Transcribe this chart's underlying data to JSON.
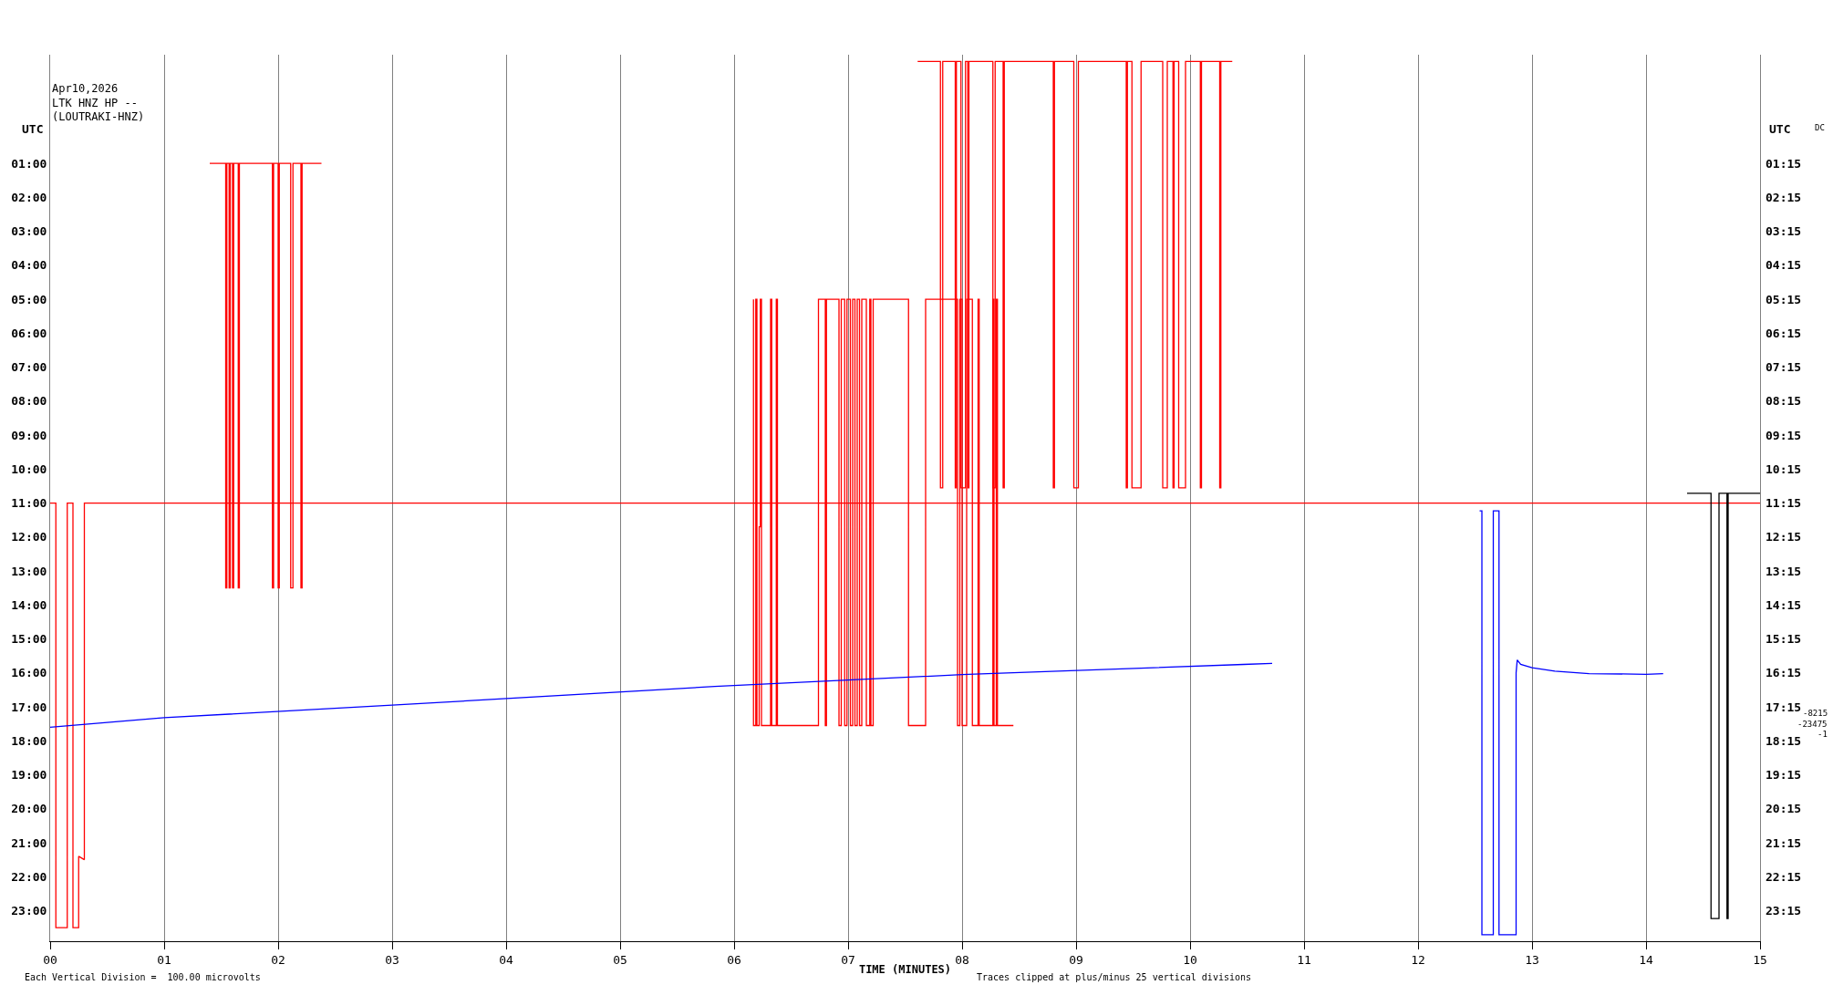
{
  "chart_data": {
    "type": "line",
    "title": "Apr10,2026",
    "subtitle": "LTK HNZ HP --\n(LOUTRAKI-HNZ)",
    "xlabel": "TIME (MINUTES)",
    "ylabel": "UTC",
    "y2label": "UTC",
    "annotations": [
      "DC",
      "-8215",
      "-23475",
      "-1",
      "Each Vertical Division =  100.00 microvolts",
      "Traces clipped at plus/minus 25 vertical divisions"
    ],
    "xlim": [
      0,
      15
    ],
    "xticks": [
      {
        "value": 0,
        "label": "00"
      },
      {
        "value": 1,
        "label": "01"
      },
      {
        "value": 2,
        "label": "02"
      },
      {
        "value": 3,
        "label": "03"
      },
      {
        "value": 4,
        "label": "04"
      },
      {
        "value": 5,
        "label": "05"
      },
      {
        "value": 6,
        "label": "06"
      },
      {
        "value": 7,
        "label": "07"
      },
      {
        "value": 8,
        "label": "08"
      },
      {
        "value": 9,
        "label": "09"
      },
      10,
      11,
      12,
      13,
      14,
      15
    ],
    "ylim": [
      23.9,
      -2.2
    ],
    "yticks": [
      {
        "value": 1,
        "label": "01:00"
      },
      {
        "value": 2,
        "label": "02:00"
      },
      {
        "value": 3,
        "label": "03:00"
      },
      {
        "value": 4,
        "label": "04:00"
      },
      {
        "value": 5,
        "label": "05:00"
      },
      {
        "value": 6,
        "label": "06:00"
      },
      {
        "value": 7,
        "label": "07:00"
      },
      {
        "value": 8,
        "label": "08:00"
      },
      {
        "value": 9,
        "label": "09:00"
      },
      {
        "value": 10,
        "label": "10:00"
      },
      {
        "value": 11,
        "label": "11:00"
      },
      {
        "value": 12,
        "label": "12:00"
      },
      {
        "value": 13,
        "label": "13:00"
      },
      {
        "value": 14,
        "label": "14:00"
      },
      {
        "value": 15,
        "label": "15:00"
      },
      {
        "value": 16,
        "label": "16:00"
      },
      {
        "value": 17,
        "label": "17:00"
      },
      {
        "value": 18,
        "label": "18:00"
      },
      {
        "value": 19,
        "label": "19:00"
      },
      {
        "value": 20,
        "label": "20:00"
      },
      {
        "value": 21,
        "label": "21:00"
      },
      {
        "value": 22,
        "label": "22:00"
      },
      {
        "value": 23,
        "label": "23:00"
      }
    ],
    "y2lim": [
      24.15,
      -1.95
    ],
    "y2ticks": [
      {
        "value": 1.25,
        "label": "01:15"
      },
      {
        "value": 2.25,
        "label": "02:15"
      },
      {
        "value": 3.25,
        "label": "03:15"
      },
      {
        "value": 4.25,
        "label": "04:15"
      },
      {
        "value": 5.25,
        "label": "05:15"
      },
      {
        "value": 6.25,
        "label": "06:15"
      },
      {
        "value": 7.25,
        "label": "07:15"
      },
      {
        "value": 8.25,
        "label": "08:15"
      },
      {
        "value": 9.25,
        "label": "09:15"
      },
      {
        "value": 10.25,
        "label": "10:15"
      },
      {
        "value": 11.25,
        "label": "11:15"
      },
      {
        "value": 12.25,
        "label": "12:15"
      },
      {
        "value": 13.25,
        "label": "13:15"
      },
      {
        "value": 14.25,
        "label": "14:15"
      },
      {
        "value": 15.25,
        "label": "15:15"
      },
      {
        "value": 16.25,
        "label": "16:15"
      },
      {
        "value": 17.25,
        "label": "17:15"
      },
      {
        "value": 18.25,
        "label": "18:15"
      },
      {
        "value": 19.25,
        "label": "19:15"
      },
      {
        "value": 20.25,
        "label": "20:15"
      },
      {
        "value": 21.25,
        "label": "21:15"
      },
      {
        "value": 22.25,
        "label": "22:15"
      },
      {
        "value": 23.25,
        "label": "23:15"
      }
    ],
    "grid": "x",
    "line_style": "solid",
    "series": [
      {
        "color": "#ff0000",
        "x": [
          0,
          0.05,
          0.05,
          0.15,
          0.15,
          0.2,
          0.2,
          0.25,
          0.25,
          0.3,
          0.3,
          0.3,
          15
        ],
        "values": [
          11,
          11,
          23.5,
          23.5,
          11,
          11,
          23.5,
          23.5,
          21.4,
          21.5,
          16,
          11,
          11
        ]
      },
      {
        "color": "#ff0000",
        "x": [
          1.4,
          1.54,
          1.54,
          1.55,
          1.55,
          1.57,
          1.57,
          1.58,
          1.58,
          1.6,
          1.6,
          1.61,
          1.61,
          1.65,
          1.65,
          1.66,
          1.66,
          1.95,
          1.95,
          1.96,
          1.96,
          2.0,
          2.0,
          2.01,
          2.01,
          2.11,
          2.11,
          2.13,
          2.13,
          2.2,
          2.2,
          2.21,
          2.21,
          2.38
        ],
        "values": [
          1,
          1,
          13.5,
          13.5,
          1,
          1,
          13.5,
          13.5,
          1,
          1,
          13.5,
          13.5,
          1,
          1,
          13.5,
          13.5,
          1,
          1,
          13.5,
          13.5,
          1,
          1,
          13.5,
          13.5,
          1,
          1,
          13.5,
          13.5,
          1,
          1,
          13.5,
          13.5,
          1,
          1
        ]
      },
      {
        "color": "#ff0000",
        "x": [
          6.17,
          6.17,
          6.19,
          6.19,
          6.2,
          6.2,
          6.22,
          6.22,
          6.23,
          6.23,
          6.24,
          6.24,
          6.32,
          6.32,
          6.33,
          6.33,
          6.37,
          6.37,
          6.38,
          6.38,
          6.74,
          6.74,
          6.8,
          6.8,
          6.81,
          6.81,
          6.92,
          6.92,
          6.94,
          6.94,
          6.97,
          6.97,
          6.99,
          6.99,
          7.02,
          7.02,
          7.04,
          7.04,
          7.06,
          7.06,
          7.08,
          7.08,
          7.1,
          7.1,
          7.12,
          7.12,
          7.16,
          7.16,
          7.19,
          7.19,
          7.2,
          7.2,
          7.22,
          7.22,
          7.53,
          7.53,
          7.68,
          7.68,
          7.96,
          7.96,
          7.98,
          7.98,
          8.0,
          8.0,
          8.04,
          8.04,
          8.09,
          8.09,
          8.14,
          8.14,
          8.15,
          8.15,
          8.27,
          8.27,
          8.28,
          8.28,
          8.3,
          8.3,
          8.31,
          8.31,
          8.45
        ],
        "values": [
          5,
          17.55,
          17.55,
          5,
          5,
          17.55,
          17.55,
          11.7,
          11.7,
          5,
          5,
          17.55,
          17.55,
          5,
          5,
          17.55,
          17.55,
          5,
          5,
          17.55,
          17.55,
          5,
          5,
          17.55,
          17.55,
          5,
          5,
          17.55,
          17.55,
          5,
          5,
          17.55,
          17.55,
          5,
          5,
          17.55,
          17.55,
          5,
          5,
          17.55,
          17.55,
          5,
          5,
          17.55,
          17.55,
          5,
          5,
          17.55,
          17.55,
          5,
          5,
          17.55,
          17.55,
          5,
          5,
          17.55,
          17.55,
          5,
          5,
          17.55,
          17.55,
          5,
          5,
          17.55,
          17.55,
          5,
          5,
          17.55,
          17.55,
          5,
          5,
          17.55,
          17.55,
          5,
          5,
          17.55,
          17.55,
          5,
          5,
          17.55,
          17.55
        ]
      },
      {
        "color": "#ff0000",
        "x": [
          7.61,
          7.81,
          7.81,
          7.83,
          7.83,
          7.94,
          7.94,
          7.95,
          7.95,
          7.99,
          7.99,
          8.03,
          8.03,
          8.05,
          8.05,
          8.06,
          8.06,
          8.27,
          8.27,
          8.29,
          8.29,
          8.36,
          8.36,
          8.37,
          8.37,
          8.8,
          8.8,
          8.81,
          8.81,
          8.98,
          8.98,
          9.02,
          9.02,
          9.44,
          9.44,
          9.45,
          9.45,
          9.49,
          9.49,
          9.57,
          9.57,
          9.76,
          9.76,
          9.8,
          9.8,
          9.85,
          9.85,
          9.86,
          9.86,
          9.9,
          9.9,
          9.96,
          9.96,
          10.09,
          10.09,
          10.1,
          10.1,
          10.26,
          10.26,
          10.27,
          10.27,
          10.37
        ],
        "values": [
          -2,
          -2,
          10.55,
          10.55,
          -2,
          -2,
          10.55,
          10.55,
          -2,
          -2,
          10.55,
          10.55,
          -2,
          -2,
          10.55,
          10.55,
          -2,
          -2,
          10.55,
          10.55,
          -2,
          -2,
          10.55,
          10.55,
          -2,
          -2,
          10.55,
          10.55,
          -2,
          -2,
          10.55,
          10.55,
          -2,
          -2,
          10.55,
          10.55,
          -2,
          -2,
          10.55,
          10.55,
          -2,
          -2,
          10.55,
          10.55,
          -2,
          -2,
          10.55,
          10.55,
          -2,
          -2,
          10.55,
          10.55,
          -2,
          -2,
          10.55,
          10.55,
          -2,
          -2,
          10.55,
          10.55,
          -2,
          -2
        ]
      },
      {
        "color": "#0000ff",
        "x": [
          0,
          1,
          3,
          5.83,
          8,
          10.47,
          10.72
        ],
        "values": [
          17.6,
          17.32,
          16.95,
          16.4,
          16.05,
          15.75,
          15.72
        ]
      },
      {
        "color": "#0000ff",
        "x": [
          12.54,
          12.56,
          12.56,
          12.66,
          12.66,
          12.71,
          12.71,
          12.71,
          12.86,
          12.86,
          12.87,
          12.9,
          13.0,
          13.2,
          13.5,
          14.0,
          14.15
        ],
        "values": [
          11.23,
          11.23,
          23.71,
          23.71,
          11.23,
          11.23,
          17.47,
          23.71,
          23.71,
          16.0,
          15.62,
          15.75,
          15.85,
          15.95,
          16.02,
          16.04,
          16.02
        ]
      },
      {
        "color": "#000000",
        "x": [
          14.36,
          14.57,
          14.57,
          14.64,
          14.64,
          14.71,
          14.71,
          14.72,
          14.72,
          15
        ],
        "values": [
          10.71,
          10.71,
          23.23,
          23.23,
          10.71,
          10.71,
          23.23,
          23.23,
          10.71,
          10.71
        ]
      }
    ]
  }
}
